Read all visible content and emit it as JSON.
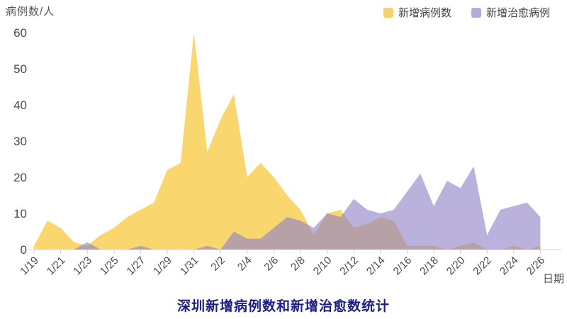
{
  "title": "深圳新增病例数和新增治愈数统计",
  "axes": {
    "y_unit": "病例数/人",
    "x_unit": "日期",
    "y_ticks": [
      0,
      10,
      20,
      30,
      40,
      50,
      60
    ],
    "ylim": [
      0,
      60
    ]
  },
  "legend": [
    {
      "label": "新增病例数",
      "color": "#F7D269"
    },
    {
      "label": "新增治愈病例",
      "color": "#B3AADA"
    }
  ],
  "colors": {
    "new_cases_fill": "#FAD66E",
    "recovered_fill": "#8F81C8",
    "recovered_opacity": 0.62,
    "axis_line": "#e3e3e3",
    "tick_mark": "#cccccc",
    "tick_text": "#4a4a4a",
    "title_text": "#1c1c85"
  },
  "chart_data": {
    "type": "area",
    "title": "深圳新增病例数和新增治愈数统计",
    "xlabel": "日期",
    "ylabel": "病例数/人",
    "ylim": [
      0,
      60
    ],
    "y_ticks": [
      0,
      10,
      20,
      30,
      40,
      50,
      60
    ],
    "grid": false,
    "legend_position": "top-right",
    "x": [
      "1/19",
      "1/20",
      "1/21",
      "1/22",
      "1/23",
      "1/24",
      "1/25",
      "1/26",
      "1/27",
      "1/28",
      "1/29",
      "1/30",
      "1/31",
      "2/1",
      "2/2",
      "2/3",
      "2/4",
      "2/5",
      "2/6",
      "2/7",
      "2/8",
      "2/9",
      "2/10",
      "2/11",
      "2/12",
      "2/13",
      "2/14",
      "2/15",
      "2/16",
      "2/17",
      "2/18",
      "2/19",
      "2/20",
      "2/21",
      "2/22",
      "2/23",
      "2/24",
      "2/25",
      "2/26"
    ],
    "x_tick_labels": [
      "1/19",
      "1/21",
      "1/23",
      "1/25",
      "1/27",
      "1/29",
      "1/31",
      "2/2",
      "2/4",
      "2/6",
      "2/8",
      "2/10",
      "2/12",
      "2/14",
      "2/16",
      "2/18",
      "2/20",
      "2/22",
      "2/24",
      "2/26"
    ],
    "series": [
      {
        "name": "新增病例数",
        "values": [
          1,
          8,
          6,
          2,
          1,
          4,
          6,
          9,
          11,
          13,
          22,
          24,
          60,
          27,
          36,
          43,
          20,
          24,
          20,
          15,
          11,
          4,
          10,
          11,
          6,
          7,
          9,
          8,
          1,
          1,
          1,
          0,
          1,
          2,
          0,
          0,
          1,
          0,
          1
        ]
      },
      {
        "name": "新增治愈病例",
        "values": [
          0,
          0,
          0,
          0,
          2,
          0,
          0,
          0,
          1,
          0,
          0,
          0,
          0,
          1,
          0,
          5,
          3,
          3,
          6,
          9,
          8,
          6,
          10,
          9,
          14,
          11,
          10,
          11,
          16,
          21,
          12,
          19,
          17,
          23,
          4,
          11,
          12,
          13,
          9
        ]
      }
    ]
  }
}
